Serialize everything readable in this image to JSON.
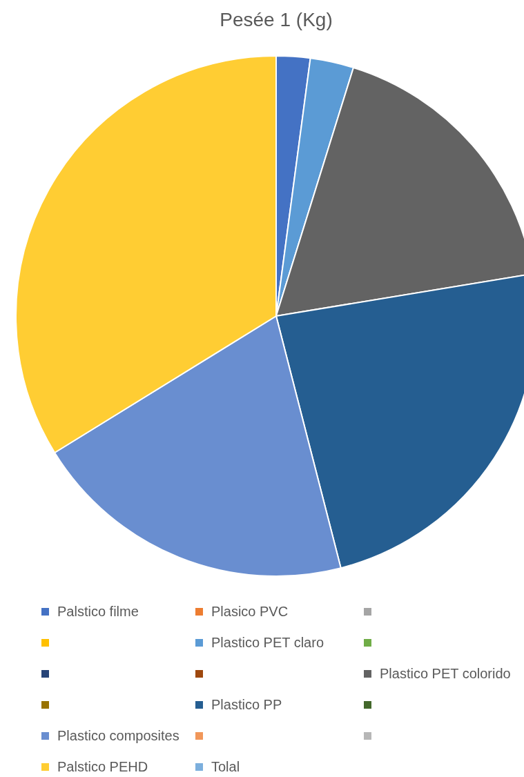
{
  "chart_data": {
    "type": "pie",
    "title": "Pesée 1 (Kg)",
    "categories": [
      "Palstico filme",
      "Plasico PVC",
      null,
      null,
      "Plastico PET claro",
      null,
      null,
      null,
      "Plastico PET colorido",
      null,
      "Plastico PP",
      null,
      "Plastico composites",
      null,
      null,
      "Palstico PEHD",
      "Tolal"
    ],
    "values": [
      2.1,
      0,
      0,
      0,
      2.7,
      0,
      0,
      0,
      17.6,
      0,
      23.6,
      0,
      20.2,
      0,
      0,
      33.8,
      0
    ],
    "colors": [
      "#4472c4",
      "#ed7d31",
      "#a5a5a5",
      "#ffc000",
      "#5b9bd5",
      "#70ad47",
      "#264478",
      "#9e480e",
      "#636363",
      "#997300",
      "#255e91",
      "#43682b",
      "#698ed0",
      "#f1975a",
      "#b7b7b7",
      "#ffcd33",
      "#7cafdd"
    ],
    "legend": "bottom"
  }
}
